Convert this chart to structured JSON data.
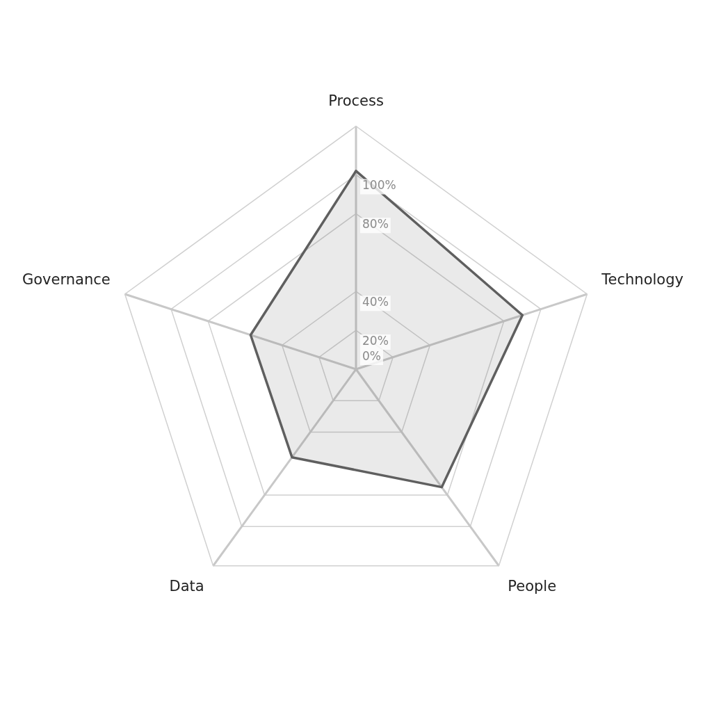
{
  "chart_data": {
    "type": "radar",
    "categories": [
      "Process",
      "Technology",
      "People",
      "Data",
      "Governance"
    ],
    "series": [
      {
        "color": "#5f5f5f",
        "values": [
          102,
          90,
          75,
          56,
          57
        ]
      }
    ],
    "ylim": [
      0,
      125
    ],
    "yticks": [
      {
        "value": 0,
        "label": "0%"
      },
      {
        "value": 20,
        "label": "20%"
      },
      {
        "value": 40,
        "label": "40%"
      },
      {
        "value": 80,
        "label": "80%"
      },
      {
        "value": 100,
        "label": "100%"
      }
    ],
    "grid": true,
    "legend": false,
    "marker": "none",
    "line_style": "solid"
  }
}
